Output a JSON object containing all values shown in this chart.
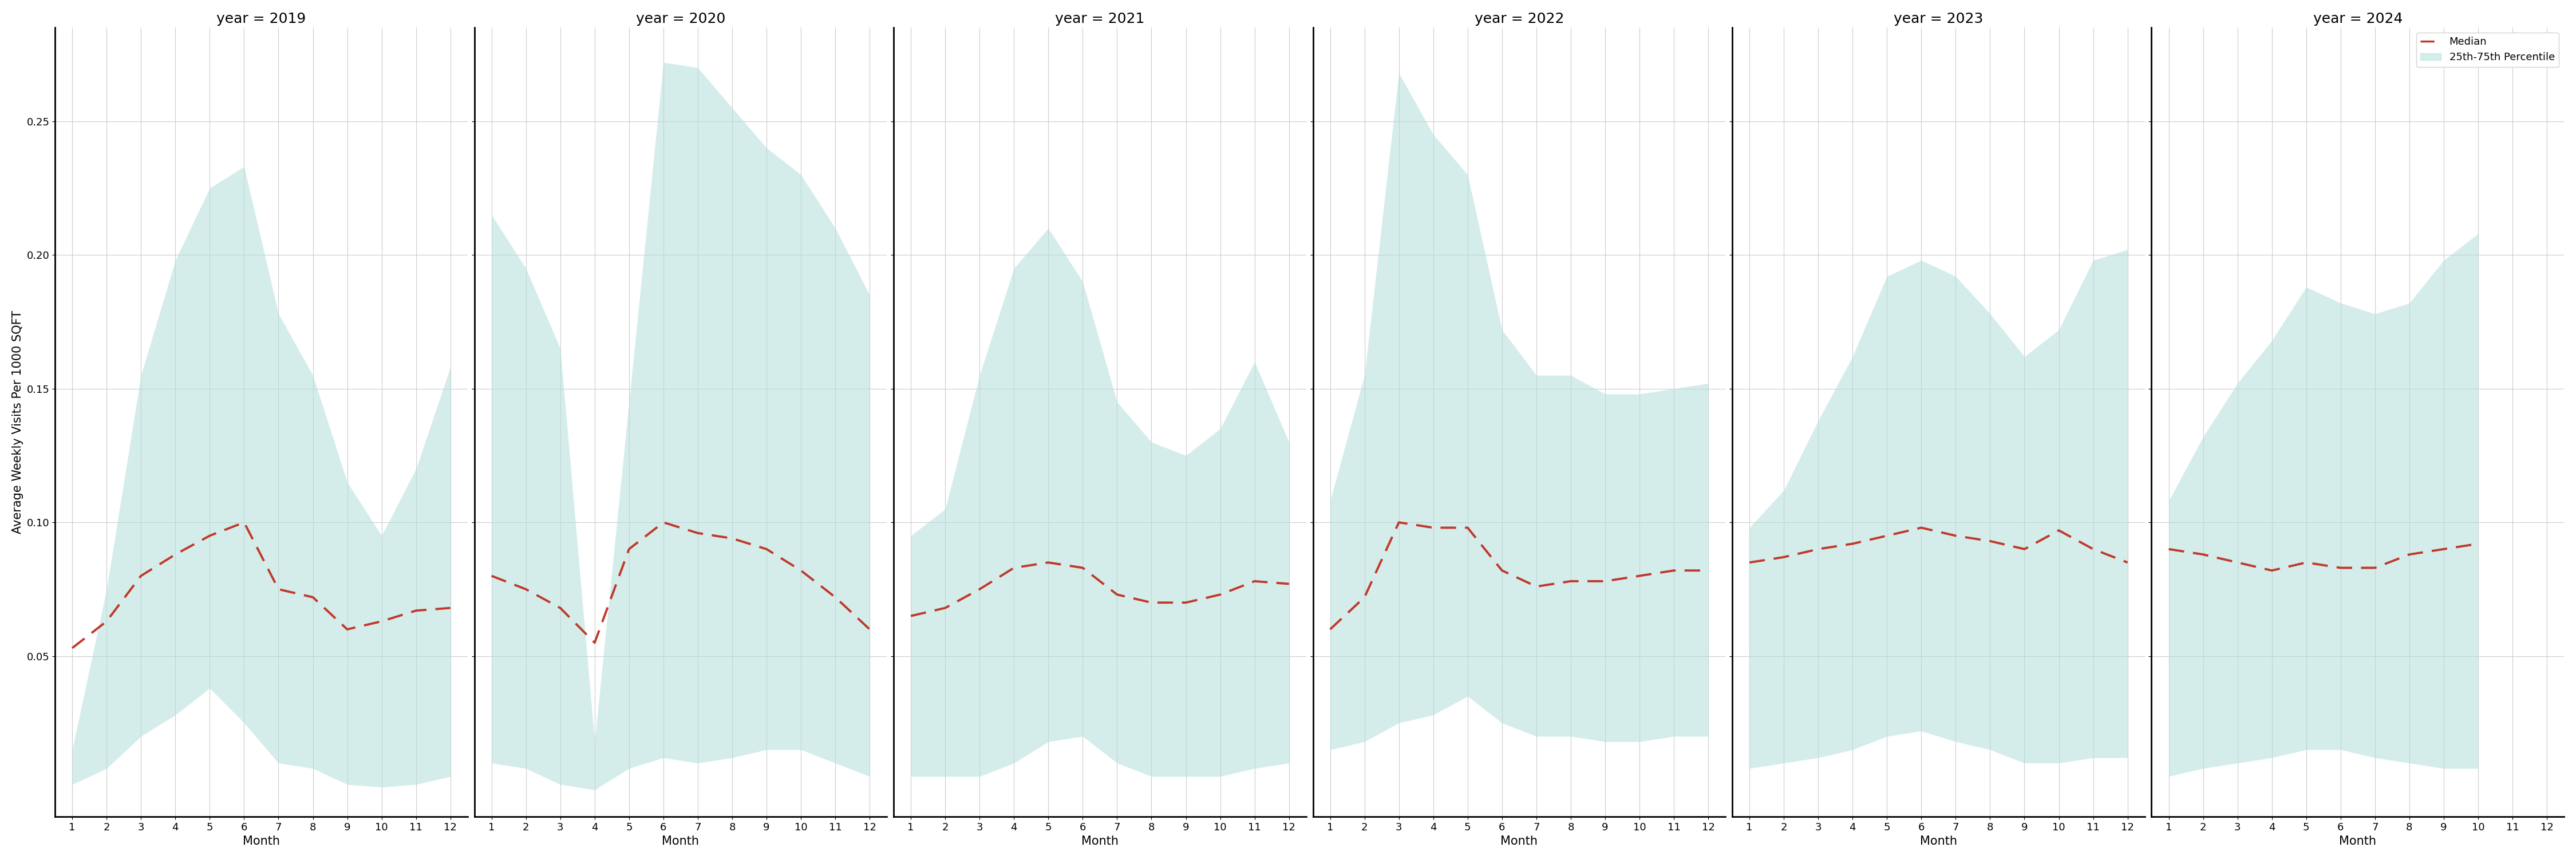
{
  "years": [
    2019,
    2020,
    2021,
    2022,
    2023,
    2024
  ],
  "months": [
    1,
    2,
    3,
    4,
    5,
    6,
    7,
    8,
    9,
    10,
    11,
    12
  ],
  "median": {
    "2019": [
      0.053,
      0.063,
      0.08,
      0.088,
      0.095,
      0.1,
      0.075,
      0.072,
      0.06,
      0.063,
      0.067,
      0.068
    ],
    "2020": [
      0.08,
      0.075,
      0.068,
      0.055,
      0.09,
      0.1,
      0.096,
      0.094,
      0.09,
      0.082,
      0.072,
      0.06
    ],
    "2021": [
      0.065,
      0.068,
      0.075,
      0.083,
      0.085,
      0.083,
      0.073,
      0.07,
      0.07,
      0.073,
      0.078,
      0.077
    ],
    "2022": [
      0.06,
      0.072,
      0.1,
      0.098,
      0.098,
      0.082,
      0.076,
      0.078,
      0.078,
      0.08,
      0.082,
      0.082
    ],
    "2023": [
      0.085,
      0.087,
      0.09,
      0.092,
      0.095,
      0.098,
      0.095,
      0.093,
      0.09,
      0.097,
      0.09,
      0.085
    ],
    "2024": [
      0.09,
      0.088,
      0.085,
      0.082,
      0.085,
      0.083,
      0.083,
      0.088,
      0.09,
      0.092,
      null,
      null
    ]
  },
  "upper": {
    "2019": [
      0.015,
      0.075,
      0.155,
      0.198,
      0.225,
      0.233,
      0.178,
      0.155,
      0.115,
      0.095,
      0.12,
      0.158
    ],
    "2020": [
      0.215,
      0.195,
      0.165,
      0.018,
      0.145,
      0.272,
      0.27,
      0.255,
      0.24,
      0.23,
      0.21,
      0.185
    ],
    "2021": [
      0.095,
      0.105,
      0.155,
      0.195,
      0.21,
      0.19,
      0.145,
      0.13,
      0.125,
      0.135,
      0.16,
      0.13
    ],
    "2022": [
      0.108,
      0.155,
      0.268,
      0.245,
      0.23,
      0.172,
      0.155,
      0.155,
      0.148,
      0.148,
      0.15,
      0.152
    ],
    "2023": [
      0.098,
      0.112,
      0.138,
      0.162,
      0.192,
      0.198,
      0.192,
      0.178,
      0.162,
      0.172,
      0.198,
      0.202
    ],
    "2024": [
      0.108,
      0.132,
      0.152,
      0.168,
      0.188,
      0.182,
      0.178,
      0.182,
      0.198,
      0.208,
      null,
      null
    ]
  },
  "lower": {
    "2019": [
      0.002,
      0.008,
      0.02,
      0.028,
      0.038,
      0.025,
      0.01,
      0.008,
      0.002,
      0.001,
      0.002,
      0.005
    ],
    "2020": [
      0.01,
      0.008,
      0.002,
      0.0,
      0.008,
      0.012,
      0.01,
      0.012,
      0.015,
      0.015,
      0.01,
      0.005
    ],
    "2021": [
      0.005,
      0.005,
      0.005,
      0.01,
      0.018,
      0.02,
      0.01,
      0.005,
      0.005,
      0.005,
      0.008,
      0.01
    ],
    "2022": [
      0.015,
      0.018,
      0.025,
      0.028,
      0.035,
      0.025,
      0.02,
      0.02,
      0.018,
      0.018,
      0.02,
      0.02
    ],
    "2023": [
      0.008,
      0.01,
      0.012,
      0.015,
      0.02,
      0.022,
      0.018,
      0.015,
      0.01,
      0.01,
      0.012,
      0.012
    ],
    "2024": [
      0.005,
      0.008,
      0.01,
      0.012,
      0.015,
      0.015,
      0.012,
      0.01,
      0.008,
      0.008,
      null,
      null
    ]
  },
  "ylabel": "Average Weekly Visits Per 1000 SQFT",
  "xlabel": "Month",
  "ylim": [
    -0.01,
    0.285
  ],
  "yticks": [
    0.05,
    0.1,
    0.15,
    0.2,
    0.25
  ],
  "fill_color": "#b2dfdb",
  "fill_alpha": 0.55,
  "line_color": "#c0392b",
  "bg_color": "#ffffff",
  "grid_color": "#cccccc",
  "title_fontsize": 18,
  "label_fontsize": 15,
  "tick_fontsize": 13
}
